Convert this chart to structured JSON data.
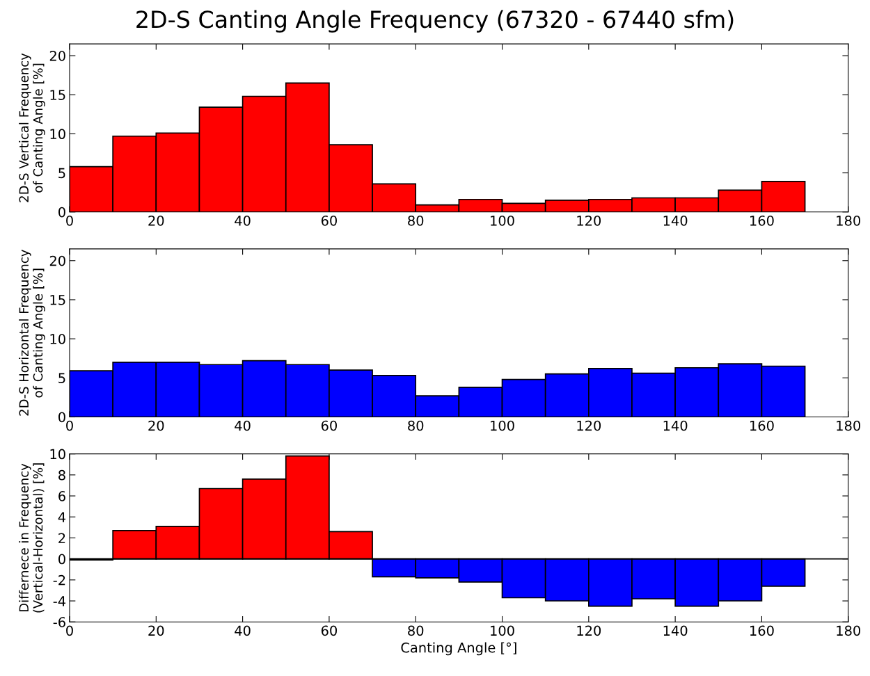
{
  "chart_data": [
    {
      "type": "histogram",
      "title": "2D-S Canting Angle Frequency (67320 - 67440 sfm)",
      "ylabel": "2D-S Vertical Frequency\nof Canting Angle [%]",
      "bins": [
        0,
        10,
        20,
        30,
        40,
        50,
        60,
        70,
        80,
        90,
        100,
        110,
        120,
        130,
        140,
        150,
        160,
        170
      ],
      "values": [
        5.8,
        9.7,
        10.1,
        13.4,
        14.8,
        16.5,
        8.6,
        3.6,
        0.9,
        1.6,
        1.1,
        1.5,
        1.6,
        1.8,
        1.8,
        2.8,
        3.9
      ],
      "color": "#ff0000",
      "xlim": [
        0,
        180
      ],
      "xticks": [
        0,
        20,
        40,
        60,
        80,
        100,
        120,
        140,
        160,
        180
      ],
      "ylim": [
        0,
        21.5
      ],
      "yticks": [
        0,
        5,
        10,
        15,
        20
      ],
      "grid": false
    },
    {
      "type": "histogram",
      "ylabel": "2D-S Horizontal Frequency\nof Canting Angle [%]",
      "bins": [
        0,
        10,
        20,
        30,
        40,
        50,
        60,
        70,
        80,
        90,
        100,
        110,
        120,
        130,
        140,
        150,
        160,
        170
      ],
      "values": [
        5.9,
        7.0,
        7.0,
        6.7,
        7.2,
        6.7,
        6.0,
        5.3,
        2.7,
        3.8,
        4.8,
        5.5,
        6.2,
        5.6,
        6.3,
        6.8,
        6.5
      ],
      "color": "#0000ff",
      "xlim": [
        0,
        180
      ],
      "xticks": [
        0,
        20,
        40,
        60,
        80,
        100,
        120,
        140,
        160,
        180
      ],
      "ylim": [
        0,
        21.5
      ],
      "yticks": [
        0,
        5,
        10,
        15,
        20
      ],
      "grid": false
    },
    {
      "type": "histogram",
      "xlabel": "Canting Angle [°]",
      "ylabel": "Differnece in Frequency\n(Vertical-Horizontal) [%]",
      "bins": [
        0,
        10,
        20,
        30,
        40,
        50,
        60,
        70,
        80,
        90,
        100,
        110,
        120,
        130,
        140,
        150,
        160,
        170
      ],
      "values": [
        -0.1,
        2.7,
        3.1,
        6.7,
        7.6,
        9.8,
        2.6,
        -1.7,
        -1.8,
        -2.2,
        -3.7,
        -4.0,
        -4.5,
        -3.8,
        -4.5,
        -4.0,
        -2.6
      ],
      "colors": [
        "#0000ff",
        "#ff0000",
        "#ff0000",
        "#ff0000",
        "#ff0000",
        "#ff0000",
        "#ff0000",
        "#0000ff",
        "#0000ff",
        "#0000ff",
        "#0000ff",
        "#0000ff",
        "#0000ff",
        "#0000ff",
        "#0000ff",
        "#0000ff",
        "#0000ff"
      ],
      "xlim": [
        0,
        180
      ],
      "xticks": [
        0,
        20,
        40,
        60,
        80,
        100,
        120,
        140,
        160,
        180
      ],
      "ylim": [
        -6,
        10
      ],
      "yticks": [
        -6,
        -4,
        -2,
        0,
        2,
        4,
        6,
        8,
        10
      ],
      "grid": false,
      "ref_lines": [
        {
          "axis": "y",
          "value": 0,
          "color": "#000000"
        }
      ]
    }
  ]
}
